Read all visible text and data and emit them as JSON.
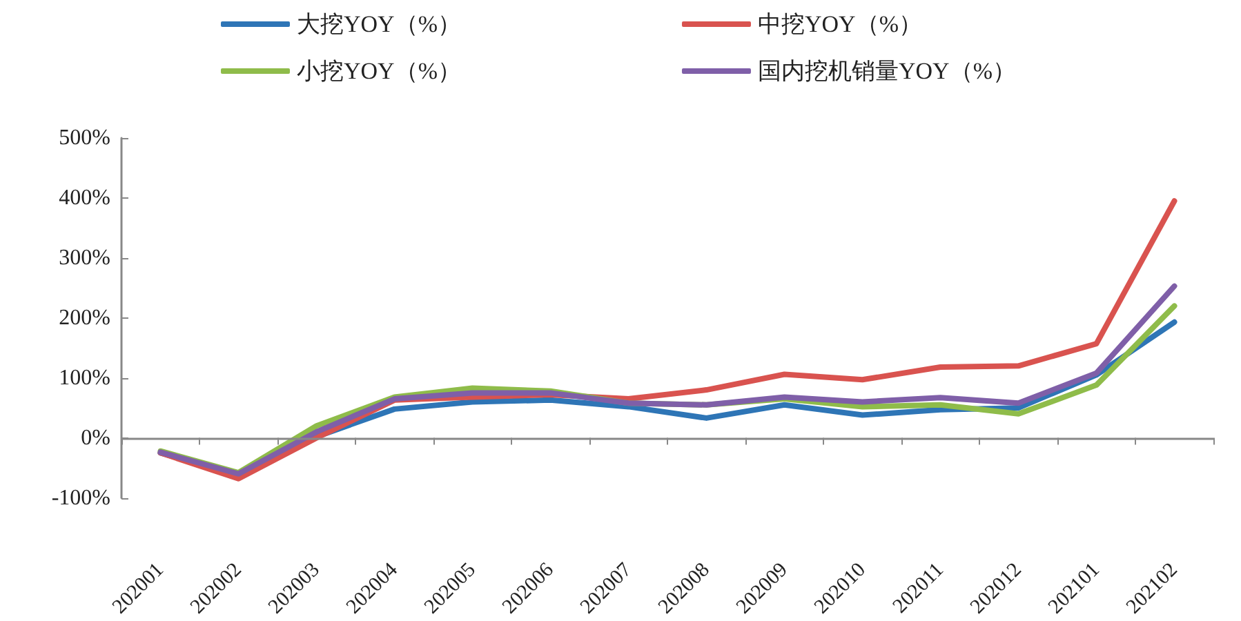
{
  "chart_data": {
    "type": "line",
    "categories": [
      "202001",
      "202002",
      "202003",
      "202004",
      "202005",
      "202006",
      "202007",
      "202008",
      "202009",
      "202010",
      "202011",
      "202012",
      "202101",
      "202102"
    ],
    "series": [
      {
        "name": "大挖YOY（%）",
        "color": "#2e75b6",
        "values": [
          -25,
          -62,
          2,
          48,
          60,
          63,
          52,
          33,
          55,
          38,
          47,
          50,
          105,
          193
        ]
      },
      {
        "name": "中挖YOY（%）",
        "color": "#d9534f",
        "values": [
          -25,
          -68,
          0,
          63,
          68,
          72,
          65,
          80,
          106,
          97,
          118,
          120,
          157,
          395
        ]
      },
      {
        "name": "小挖YOY（%）",
        "color": "#8fbc4a",
        "values": [
          -22,
          -58,
          20,
          68,
          83,
          78,
          58,
          55,
          65,
          52,
          55,
          40,
          88,
          220
        ]
      },
      {
        "name": "国内挖机销量YOY（%）",
        "color": "#7f5fa8",
        "values": [
          -24,
          -60,
          10,
          65,
          75,
          75,
          58,
          55,
          68,
          60,
          67,
          58,
          108,
          253
        ]
      }
    ],
    "ylim": [
      -100,
      500
    ],
    "yticks": [
      {
        "value": -100,
        "label": "-100%"
      },
      {
        "value": 0,
        "label": "0%"
      },
      {
        "value": 100,
        "label": "100%"
      },
      {
        "value": 200,
        "label": "200%"
      },
      {
        "value": 300,
        "label": "300%"
      },
      {
        "value": 400,
        "label": "400%"
      },
      {
        "value": 500,
        "label": "500%"
      }
    ],
    "ref_lines": [
      {
        "axis": "y",
        "value": 0,
        "color": "#888888"
      }
    ],
    "grid": false,
    "legend": "top",
    "marker": "none",
    "line_style": "solid"
  }
}
